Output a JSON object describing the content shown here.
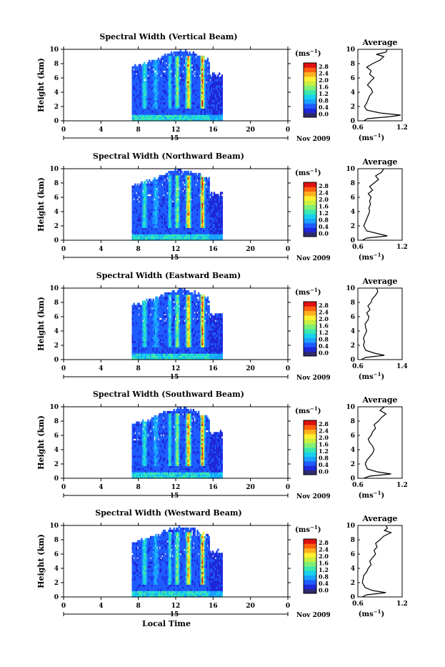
{
  "chart_data": [
    {
      "type": "heatmap",
      "title": "Spectral Width (Vertical Beam)",
      "ylabel": "Height (km)",
      "xlim": [
        0,
        24
      ],
      "ylim": [
        0,
        10
      ],
      "x_ticks": [
        "0",
        "4",
        "8",
        "12",
        "16",
        "20",
        "0"
      ],
      "y_ticks": [
        "0",
        "2",
        "4",
        "6",
        "8",
        "10"
      ],
      "day_label": "15",
      "month_label": "Nov 2009",
      "colorbar": {
        "unit": "(ms⁻¹)",
        "ticks": [
          "0.0",
          "0.4",
          "0.8",
          "1.2",
          "1.6",
          "2.0",
          "2.4",
          "2.8"
        ]
      },
      "average": {
        "title": "Average",
        "xlabel": "(ms⁻¹)",
        "xlim": [
          0.6,
          1.2
        ],
        "x_ticks": [
          "0.6",
          "1.2"
        ],
        "y_ticks": [
          "0",
          "2",
          "4",
          "6",
          "8",
          "10"
        ],
        "profile": [
          [
            0.0,
            0.68
          ],
          [
            0.3,
            0.73
          ],
          [
            0.6,
            1.05
          ],
          [
            0.8,
            1.18
          ],
          [
            1.1,
            0.9
          ],
          [
            1.5,
            0.72
          ],
          [
            2.0,
            0.69
          ],
          [
            2.5,
            0.72
          ],
          [
            3.0,
            0.74
          ],
          [
            3.5,
            0.76
          ],
          [
            4.0,
            0.8
          ],
          [
            4.5,
            0.78
          ],
          [
            5.0,
            0.73
          ],
          [
            5.5,
            0.77
          ],
          [
            6.0,
            0.82
          ],
          [
            6.5,
            0.76
          ],
          [
            7.0,
            0.78
          ],
          [
            7.5,
            0.72
          ],
          [
            8.0,
            0.8
          ],
          [
            8.5,
            0.9
          ],
          [
            9.0,
            0.95
          ],
          [
            9.3,
            0.85
          ],
          [
            9.6,
            0.98
          ],
          [
            10.0,
            1.0
          ]
        ]
      }
    },
    {
      "type": "heatmap",
      "title": "Spectral Width (Northward Beam)",
      "ylabel": "Height (km)",
      "xlim": [
        0,
        24
      ],
      "ylim": [
        0,
        10
      ],
      "x_ticks": [
        "0",
        "4",
        "8",
        "12",
        "16",
        "20",
        "0"
      ],
      "y_ticks": [
        "0",
        "2",
        "4",
        "6",
        "8",
        "10"
      ],
      "day_label": "15",
      "month_label": "Nov 2009",
      "colorbar": {
        "unit": "(ms⁻¹)",
        "ticks": [
          "0.0",
          "0.4",
          "0.8",
          "1.2",
          "1.6",
          "2.0",
          "2.4",
          "2.8"
        ]
      },
      "average": {
        "title": "Average",
        "xlabel": "(ms⁻¹)",
        "xlim": [
          0.6,
          1.2
        ],
        "x_ticks": [
          "0.6",
          "1.2"
        ],
        "y_ticks": [
          "0",
          "2",
          "4",
          "6",
          "8",
          "10"
        ],
        "profile": [
          [
            0.0,
            0.66
          ],
          [
            0.3,
            0.72
          ],
          [
            0.6,
            1.0
          ],
          [
            0.9,
            0.88
          ],
          [
            1.3,
            0.72
          ],
          [
            2.0,
            0.68
          ],
          [
            2.5,
            0.7
          ],
          [
            3.0,
            0.72
          ],
          [
            3.5,
            0.74
          ],
          [
            4.0,
            0.76
          ],
          [
            4.5,
            0.75
          ],
          [
            5.0,
            0.77
          ],
          [
            5.5,
            0.76
          ],
          [
            6.0,
            0.78
          ],
          [
            6.5,
            0.74
          ],
          [
            7.0,
            0.8
          ],
          [
            7.5,
            0.76
          ],
          [
            8.0,
            0.82
          ],
          [
            8.5,
            0.88
          ],
          [
            9.0,
            0.84
          ],
          [
            9.5,
            0.92
          ],
          [
            10.0,
            0.95
          ]
        ]
      }
    },
    {
      "type": "heatmap",
      "title": "Spectral Width (Eastward Beam)",
      "ylabel": "Height (km)",
      "xlim": [
        0,
        24
      ],
      "ylim": [
        0,
        10
      ],
      "x_ticks": [
        "0",
        "4",
        "8",
        "12",
        "16",
        "20",
        "0"
      ],
      "y_ticks": [
        "0",
        "2",
        "4",
        "6",
        "8",
        "10"
      ],
      "day_label": "15",
      "month_label": "Nov 2009",
      "colorbar": {
        "unit": "(ms⁻¹)",
        "ticks": [
          "0.0",
          "0.4",
          "0.8",
          "1.2",
          "1.6",
          "2.0",
          "2.4",
          "2.8"
        ]
      },
      "average": {
        "title": "Average",
        "xlabel": "(ms⁻¹)",
        "xlim": [
          0.6,
          1.4
        ],
        "x_ticks": [
          "0.6",
          "1.4"
        ],
        "y_ticks": [
          "0",
          "2",
          "4",
          "6",
          "8",
          "10"
        ],
        "profile": [
          [
            0.0,
            0.66
          ],
          [
            0.3,
            0.74
          ],
          [
            0.6,
            1.08
          ],
          [
            0.9,
            0.9
          ],
          [
            1.3,
            0.74
          ],
          [
            2.0,
            0.7
          ],
          [
            2.5,
            0.72
          ],
          [
            3.0,
            0.7
          ],
          [
            3.5,
            0.73
          ],
          [
            4.0,
            0.76
          ],
          [
            4.5,
            0.74
          ],
          [
            5.0,
            0.73
          ],
          [
            5.5,
            0.78
          ],
          [
            6.0,
            0.8
          ],
          [
            6.5,
            0.76
          ],
          [
            7.0,
            0.82
          ],
          [
            7.5,
            0.78
          ],
          [
            8.0,
            0.84
          ],
          [
            8.5,
            0.86
          ],
          [
            9.0,
            0.92
          ],
          [
            9.5,
            0.96
          ],
          [
            10.0,
            0.94
          ]
        ]
      }
    },
    {
      "type": "heatmap",
      "title": "Spectral Width (Southward Beam)",
      "ylabel": "Height (km)",
      "xlim": [
        0,
        24
      ],
      "ylim": [
        0,
        10
      ],
      "x_ticks": [
        "0",
        "4",
        "8",
        "12",
        "16",
        "20",
        "0"
      ],
      "y_ticks": [
        "0",
        "2",
        "4",
        "6",
        "8",
        "10"
      ],
      "day_label": "15",
      "month_label": "Nov 2009",
      "colorbar": {
        "unit": "(ms⁻¹)",
        "ticks": [
          "0.0",
          "0.4",
          "0.8",
          "1.2",
          "1.6",
          "2.0",
          "2.4",
          "2.8"
        ]
      },
      "average": {
        "title": "Average",
        "xlabel": "(ms⁻¹)",
        "xlim": [
          0.6,
          1.2
        ],
        "x_ticks": [
          "0.6",
          "1.2"
        ],
        "y_ticks": [
          "0",
          "2",
          "4",
          "6",
          "8",
          "10"
        ],
        "profile": [
          [
            0.0,
            0.68
          ],
          [
            0.3,
            0.76
          ],
          [
            0.6,
            1.05
          ],
          [
            0.9,
            0.86
          ],
          [
            1.3,
            0.73
          ],
          [
            2.0,
            0.7
          ],
          [
            2.5,
            0.72
          ],
          [
            3.0,
            0.76
          ],
          [
            3.5,
            0.8
          ],
          [
            4.0,
            0.82
          ],
          [
            4.5,
            0.8
          ],
          [
            5.0,
            0.76
          ],
          [
            5.5,
            0.74
          ],
          [
            6.0,
            0.78
          ],
          [
            6.5,
            0.8
          ],
          [
            7.0,
            0.84
          ],
          [
            7.5,
            0.82
          ],
          [
            8.0,
            0.88
          ],
          [
            8.5,
            0.92
          ],
          [
            9.0,
            0.98
          ],
          [
            9.5,
            0.9
          ],
          [
            10.0,
            0.96
          ]
        ]
      }
    },
    {
      "type": "heatmap",
      "title": "Spectral Width (Westward Beam)",
      "ylabel": "Height (km)",
      "xlabel": "Local Time",
      "xlim": [
        0,
        24
      ],
      "ylim": [
        0,
        10
      ],
      "x_ticks": [
        "0",
        "4",
        "8",
        "12",
        "16",
        "20",
        "0"
      ],
      "y_ticks": [
        "0",
        "2",
        "4",
        "6",
        "8",
        "10"
      ],
      "day_label": "15",
      "month_label": "Nov 2009",
      "colorbar": {
        "unit": "(ms⁻¹)",
        "ticks": [
          "0.0",
          "0.4",
          "0.8",
          "1.2",
          "1.6",
          "2.0",
          "2.4",
          "2.8"
        ]
      },
      "average": {
        "title": "Average",
        "xlabel": "(ms⁻¹)",
        "xlim": [
          0.6,
          1.2
        ],
        "x_ticks": [
          "0.6",
          "1.2"
        ],
        "y_ticks": [
          "0",
          "2",
          "4",
          "6",
          "8",
          "10"
        ],
        "profile": [
          [
            0.0,
            0.66
          ],
          [
            0.3,
            0.72
          ],
          [
            0.6,
            0.98
          ],
          [
            0.9,
            0.8
          ],
          [
            1.3,
            0.7
          ],
          [
            2.0,
            0.66
          ],
          [
            2.5,
            0.67
          ],
          [
            3.0,
            0.68
          ],
          [
            3.5,
            0.72
          ],
          [
            4.0,
            0.74
          ],
          [
            4.5,
            0.78
          ],
          [
            5.0,
            0.76
          ],
          [
            5.5,
            0.8
          ],
          [
            6.0,
            0.84
          ],
          [
            6.5,
            0.82
          ],
          [
            7.0,
            0.86
          ],
          [
            7.5,
            0.84
          ],
          [
            8.0,
            0.9
          ],
          [
            8.5,
            0.95
          ],
          [
            9.0,
            1.05
          ],
          [
            9.3,
            0.96
          ],
          [
            9.6,
            1.0
          ],
          [
            10.0,
            0.98
          ]
        ]
      }
    }
  ],
  "colors": {
    "colormap": [
      "#2e2a6e",
      "#1e28d8",
      "#1e5cff",
      "#1aa0ff",
      "#18d0ee",
      "#3ae8b0",
      "#80f078",
      "#c8f040",
      "#fff030",
      "#ffb020",
      "#ff6010",
      "#e01010"
    ]
  }
}
